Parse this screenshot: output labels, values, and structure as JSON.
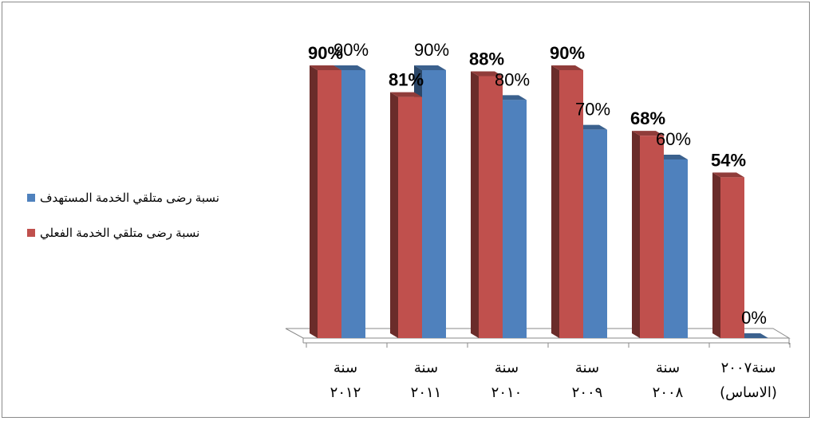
{
  "chart_data": {
    "type": "bar",
    "title": "",
    "xlabel": "",
    "ylabel": "",
    "ylim": [
      0,
      100
    ],
    "categories": [
      {
        "line1": "سنة",
        "line2": "٢٠١٢"
      },
      {
        "line1": "سنة",
        "line2": "٢٠١١"
      },
      {
        "line1": "سنة",
        "line2": "٢٠١٠"
      },
      {
        "line1": "سنة",
        "line2": "٢٠٠٩"
      },
      {
        "line1": "سنة",
        "line2": "٢٠٠٨"
      },
      {
        "line1": "سنة٢٠٠٧",
        "line2": "(الاساس)"
      }
    ],
    "series": [
      {
        "name": "نسبة رضى متلقي الخدمة الفعلي",
        "color": "#c0504d",
        "values": [
          90,
          81,
          88,
          90,
          68,
          54
        ],
        "labels": [
          "90%",
          "81%",
          "88%",
          "90%",
          "68%",
          "54%"
        ],
        "bold": true
      },
      {
        "name": "نسبة رضى متلقي الخدمة المستهدف",
        "color": "#4f81bd",
        "values": [
          90,
          90,
          80,
          70,
          60,
          0
        ],
        "labels": [
          "90%",
          "90%",
          "80%",
          "70%",
          "60%",
          "0%"
        ],
        "bold": false
      }
    ],
    "legend": {
      "position": "left",
      "order": [
        1,
        0
      ]
    },
    "grid": false
  }
}
